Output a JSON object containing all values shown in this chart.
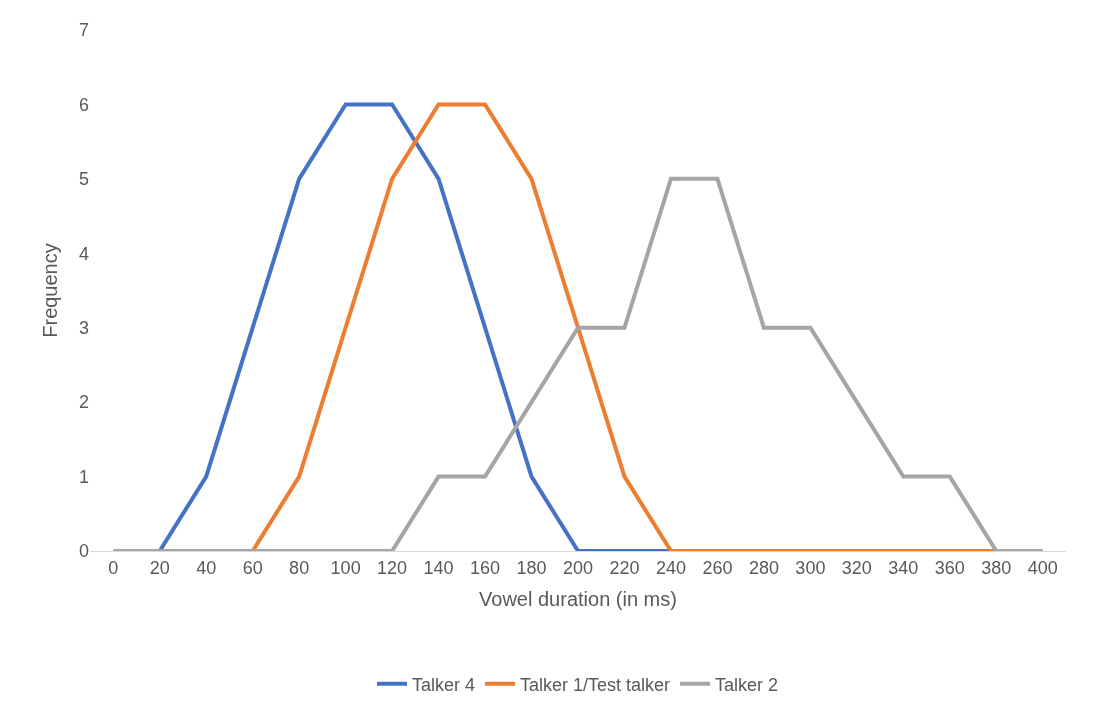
{
  "chart_data": {
    "type": "line",
    "xlabel": "Vowel duration (in ms)",
    "ylabel": "Frequency",
    "categories": [
      "0",
      "20",
      "40",
      "60",
      "80",
      "100",
      "120",
      "140",
      "160",
      "180",
      "200",
      "220",
      "240",
      "260",
      "280",
      "300",
      "320",
      "340",
      "360",
      "380",
      "400"
    ],
    "series": [
      {
        "name": "Talker 4",
        "color": "#4472c4",
        "values": [
          null,
          0,
          1,
          3,
          5,
          6,
          6,
          5,
          3,
          1,
          0,
          0,
          0,
          null,
          null,
          null,
          null,
          null,
          null,
          null,
          null
        ]
      },
      {
        "name": "Talker 1/Test talker",
        "color": "#ed7d31",
        "values": [
          null,
          null,
          null,
          0,
          1,
          3,
          5,
          6,
          6,
          5,
          3,
          1,
          0,
          0,
          0,
          0,
          0,
          0,
          0,
          0,
          null
        ]
      },
      {
        "name": "Talker 2",
        "color": "#a5a5a5",
        "values": [
          0,
          0,
          0,
          0,
          0,
          0,
          0,
          1,
          1,
          2,
          3,
          3,
          5,
          5,
          3,
          3,
          2,
          1,
          1,
          0,
          0
        ]
      }
    ],
    "ylim": [
      0,
      7
    ],
    "yticks": [
      0,
      1,
      2,
      3,
      4,
      5,
      6,
      7
    ],
    "grid": false,
    "legend": "bottom",
    "marker": "none",
    "line_style": "solid"
  }
}
